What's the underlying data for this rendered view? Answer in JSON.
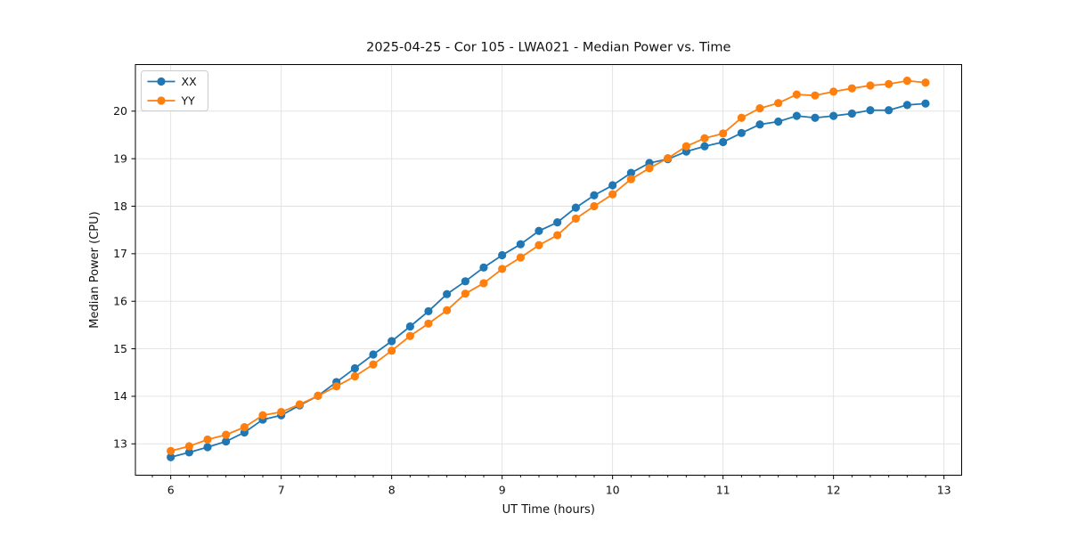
{
  "chart_data": {
    "type": "line",
    "title": "2025-04-25 - Cor 105 - LWA021 - Median Power vs. Time",
    "xlabel": "UT Time (hours)",
    "ylabel": "Median Power (CPU)",
    "xlim": [
      5.68,
      13.16
    ],
    "ylim": [
      12.34,
      20.98
    ],
    "xticks": [
      6,
      7,
      8,
      9,
      10,
      11,
      12,
      13
    ],
    "yticks": [
      13,
      14,
      15,
      16,
      17,
      18,
      19,
      20
    ],
    "x_minor_per_major": 6,
    "grid": true,
    "legend_position": "upper left",
    "background_color": "#ffffff",
    "grid_color": "#e0e0e0",
    "spine_color": "#000000",
    "x": [
      6.0,
      6.167,
      6.333,
      6.5,
      6.667,
      6.833,
      7.0,
      7.167,
      7.333,
      7.5,
      7.667,
      7.833,
      8.0,
      8.167,
      8.333,
      8.5,
      8.667,
      8.833,
      9.0,
      9.167,
      9.333,
      9.5,
      9.667,
      9.833,
      10.0,
      10.167,
      10.333,
      10.5,
      10.667,
      10.833,
      11.0,
      11.167,
      11.333,
      11.5,
      11.667,
      11.833,
      12.0,
      12.167,
      12.333,
      12.5,
      12.667,
      12.833
    ],
    "series": [
      {
        "name": "XX",
        "color": "#1f77b4",
        "values": [
          12.72,
          12.82,
          12.93,
          13.05,
          13.24,
          13.51,
          13.6,
          13.81,
          14.01,
          14.3,
          14.59,
          14.88,
          15.16,
          15.47,
          15.79,
          16.15,
          16.42,
          16.71,
          16.97,
          17.2,
          17.48,
          17.66,
          17.97,
          18.23,
          18.44,
          18.7,
          18.91,
          18.99,
          19.15,
          19.26,
          19.35,
          19.54,
          19.72,
          19.78,
          19.9,
          19.86,
          19.9,
          19.95,
          20.02,
          20.02,
          20.13,
          20.16
        ]
      },
      {
        "name": "YY",
        "color": "#ff7f0e",
        "values": [
          12.85,
          12.95,
          13.09,
          13.19,
          13.35,
          13.6,
          13.67,
          13.83,
          14.01,
          14.21,
          14.42,
          14.67,
          14.96,
          15.27,
          15.53,
          15.81,
          16.16,
          16.38,
          16.68,
          16.92,
          17.18,
          17.39,
          17.74,
          18.0,
          18.25,
          18.57,
          18.8,
          19.01,
          19.26,
          19.43,
          19.53,
          19.86,
          20.06,
          20.17,
          20.35,
          20.33,
          20.41,
          20.48,
          20.54,
          20.57,
          20.64,
          20.6
        ]
      }
    ]
  }
}
